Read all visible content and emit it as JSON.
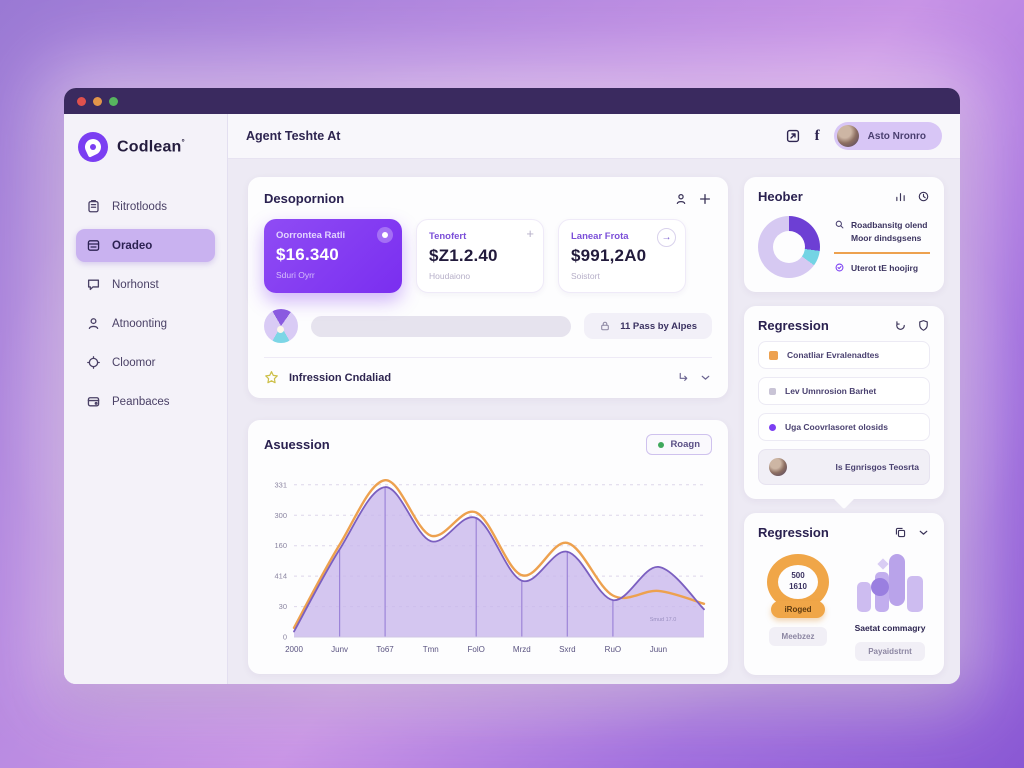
{
  "colors": {
    "accent": "#7b3ff2",
    "orange": "#eda14f",
    "teal": "#74d4e4",
    "green": "#3fa85c",
    "titlebar": "#3a2a5f"
  },
  "window": {
    "traffic_lights": [
      "#e0514d",
      "#e2954a",
      "#57b45f"
    ]
  },
  "sidebar": {
    "logo": "Codlean",
    "logo_suffix": "°",
    "items": [
      {
        "label": "Ritrotloods",
        "icon": "clipboard-icon",
        "active": false
      },
      {
        "label": "Oradeo",
        "icon": "panel-icon",
        "active": true
      },
      {
        "label": "Norhonst",
        "icon": "chat-icon",
        "active": false
      },
      {
        "label": "Atnoonting",
        "icon": "user-icon",
        "active": false
      },
      {
        "label": "Cloomor",
        "icon": "puzzle-icon",
        "active": false
      },
      {
        "label": "Peanbaces",
        "icon": "wallet-icon",
        "active": false
      }
    ]
  },
  "topbar": {
    "title": "Agent Teshte At",
    "user_name": "Asto Nronro"
  },
  "overview": {
    "title": "Desopornion",
    "cards": [
      {
        "label": "Oorrontea Ratli",
        "value": "$16.340",
        "sub": "Sduri Oyrr",
        "variant": "purple",
        "corner": "badge"
      },
      {
        "label": "Tenofert",
        "value": "$Z1.2.40",
        "sub": "Houdaiono",
        "variant": "white",
        "corner": "plus"
      },
      {
        "label": "Lanear Frota",
        "value": "$991,2A0",
        "sub": "Soistort",
        "variant": "white",
        "corner": "arrow"
      }
    ],
    "passes_label": "11 Pass by Alpes",
    "status_label": "Infression Cndaliad"
  },
  "right": {
    "heober": {
      "title": "Heober",
      "legend_line1": "Roadbansitg olend",
      "legend_line2": "Moor dindsgsens",
      "legend_line3": "Uterot tE hoojirg"
    },
    "regression_list": {
      "title": "Regression",
      "items": [
        {
          "bullet": "orange-square",
          "label": "Conatliar Evralenadtes"
        },
        {
          "bullet": "gray-square",
          "label": "Lev Umnrosion Barhet"
        },
        {
          "bullet": "purple-dot",
          "label": "Uga Coovrlasoret olosids"
        },
        {
          "bullet": "avatar",
          "label": "Is Egnrisgos Teosrta"
        }
      ]
    },
    "regression_widgets": {
      "title": "Regression",
      "gauge": {
        "value_top": "500",
        "value_bottom": "1610",
        "pill": "iRoged",
        "caption": "Meebzez"
      },
      "illustration": {
        "caption": "Saetat commagry",
        "pill": "Payaidstrnt"
      }
    }
  },
  "chart_data": [
    {
      "type": "area",
      "title": "Asuession",
      "legend": [
        {
          "label": "Roagn",
          "color": "#3fa85c"
        }
      ],
      "x_labels": [
        "2000",
        "Junv",
        "To67",
        "Tmn",
        "FolO",
        "Mrzd",
        "Sxrd",
        "RuO",
        "Juun"
      ],
      "y_tick_labels": [
        "331",
        "300",
        "160",
        "414",
        "30",
        "0"
      ],
      "y_tick_values": [
        330,
        264,
        198,
        132,
        66,
        0
      ],
      "ylim": [
        0,
        360
      ],
      "grid": "dashed",
      "series": [
        {
          "name": "primary",
          "color": "#7b5fc0",
          "fill": "#c9b8ec",
          "values": [
            12,
            190,
            325,
            208,
            258,
            122,
            185,
            80,
            152,
            60
          ]
        },
        {
          "name": "secondary",
          "color": "#eda14f",
          "values": [
            20,
            200,
            340,
            220,
            270,
            134,
            204,
            90,
            100,
            72
          ]
        }
      ],
      "droplines": [
        1,
        2,
        4,
        5,
        6,
        7
      ],
      "annotation": "Smud 17.0"
    },
    {
      "type": "donut",
      "title": "Heober",
      "values": [
        27,
        8,
        65
      ],
      "colors": [
        "#6d3fd4",
        "#74d4e4",
        "#d6c9f2"
      ]
    }
  ]
}
